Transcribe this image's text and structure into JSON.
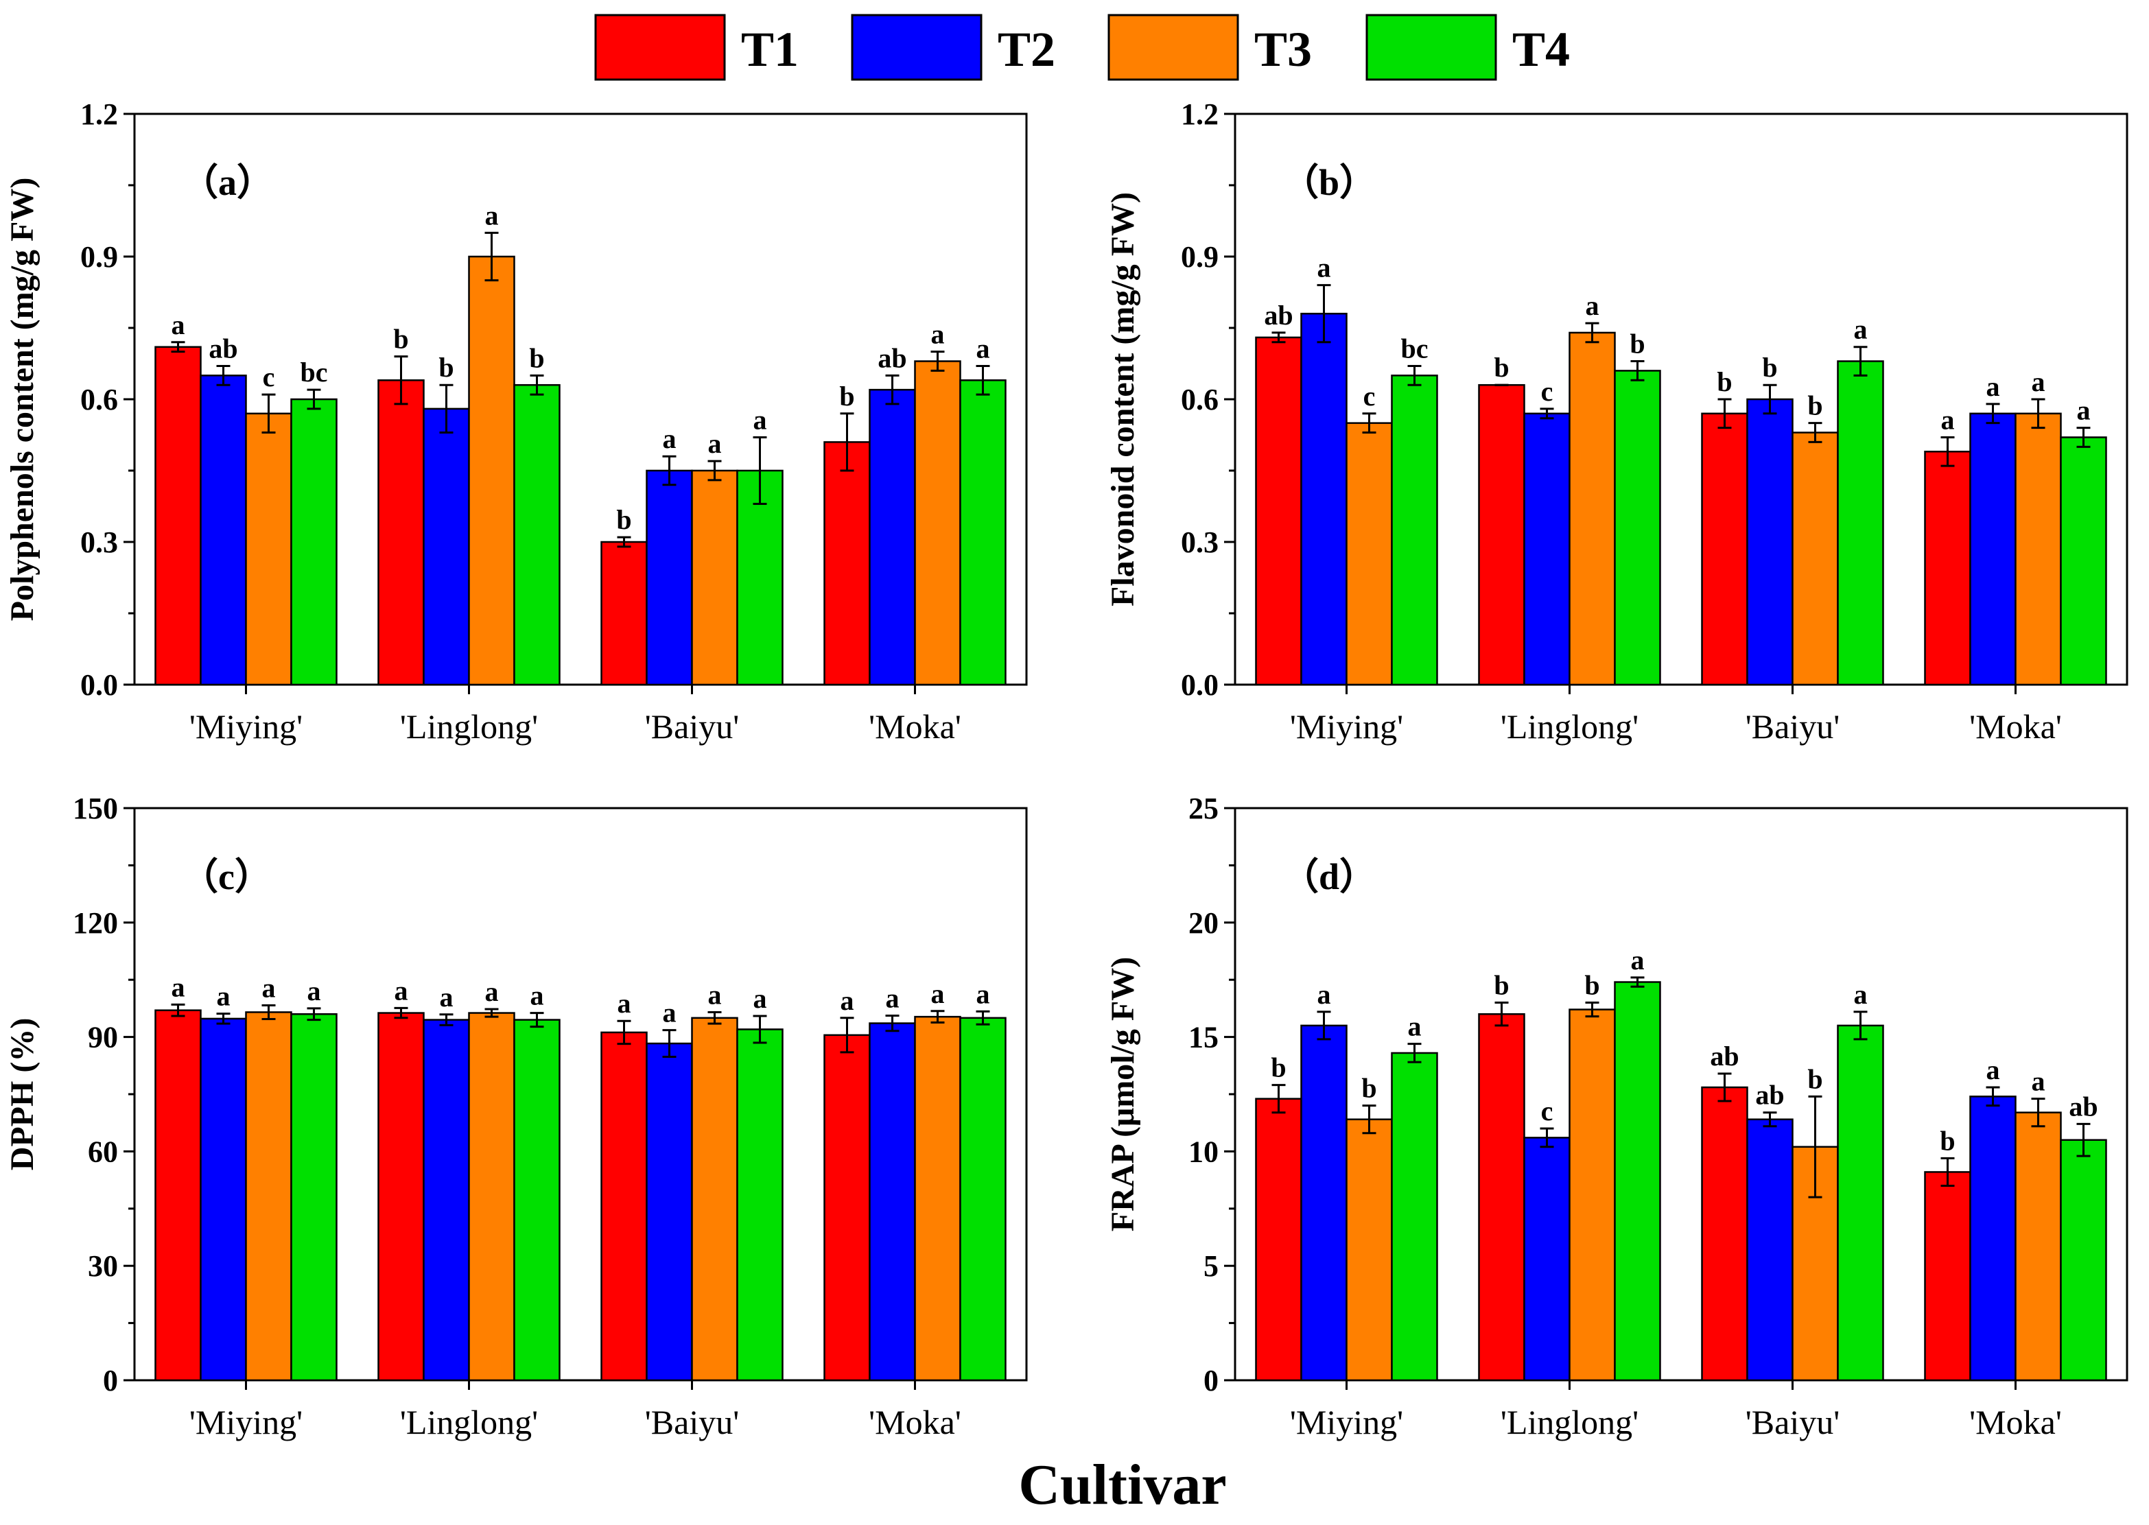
{
  "legend": [
    {
      "name": "T1",
      "color": "#ff0000"
    },
    {
      "name": "T2",
      "color": "#0000ff"
    },
    {
      "name": "T3",
      "color": "#ff8000"
    },
    {
      "name": "T4",
      "color": "#00e000"
    }
  ],
  "x_title": "Cultivar",
  "chart_data": [
    {
      "type": "bar",
      "panel_label": "（a）",
      "ylabel": "Polyphenols content (mg/g FW)",
      "ylim": [
        0,
        1.2
      ],
      "yticks": [
        "0.0",
        "0.3",
        "0.6",
        "0.9",
        "1.2"
      ],
      "categories": [
        "'Miying'",
        "'Linglong'",
        "'Baiyu'",
        "'Moka'"
      ],
      "series": [
        {
          "name": "T1",
          "values": [
            0.71,
            0.64,
            0.3,
            0.51
          ],
          "errors": [
            0.01,
            0.05,
            0.01,
            0.06
          ],
          "letters": [
            "a",
            "b",
            "b",
            "b"
          ]
        },
        {
          "name": "T2",
          "values": [
            0.65,
            0.58,
            0.45,
            0.62
          ],
          "errors": [
            0.02,
            0.05,
            0.03,
            0.03
          ],
          "letters": [
            "ab",
            "b",
            "a",
            "ab"
          ]
        },
        {
          "name": "T3",
          "values": [
            0.57,
            0.9,
            0.45,
            0.68
          ],
          "errors": [
            0.04,
            0.05,
            0.02,
            0.02
          ],
          "letters": [
            "c",
            "a",
            "a",
            "a"
          ]
        },
        {
          "name": "T4",
          "values": [
            0.6,
            0.63,
            0.45,
            0.64
          ],
          "errors": [
            0.02,
            0.02,
            0.07,
            0.03
          ],
          "letters": [
            "bc",
            "b",
            "a",
            "a"
          ]
        }
      ]
    },
    {
      "type": "bar",
      "panel_label": "（b）",
      "ylabel": "Flavonoid content (mg/g FW)",
      "ylim": [
        0,
        1.2
      ],
      "yticks": [
        "0.0",
        "0.3",
        "0.6",
        "0.9",
        "1.2"
      ],
      "categories": [
        "'Miying'",
        "'Linglong'",
        "'Baiyu'",
        "'Moka'"
      ],
      "series": [
        {
          "name": "T1",
          "values": [
            0.73,
            0.63,
            0.57,
            0.49
          ],
          "errors": [
            0.01,
            0.0,
            0.03,
            0.03
          ],
          "letters": [
            "ab",
            "b",
            "b",
            "a"
          ]
        },
        {
          "name": "T2",
          "values": [
            0.78,
            0.57,
            0.6,
            0.57
          ],
          "errors": [
            0.06,
            0.01,
            0.03,
            0.02
          ],
          "letters": [
            "a",
            "c",
            "b",
            "a"
          ]
        },
        {
          "name": "T3",
          "values": [
            0.55,
            0.74,
            0.53,
            0.57
          ],
          "errors": [
            0.02,
            0.02,
            0.02,
            0.03
          ],
          "letters": [
            "c",
            "a",
            "b",
            "a"
          ]
        },
        {
          "name": "T4",
          "values": [
            0.65,
            0.66,
            0.68,
            0.52
          ],
          "errors": [
            0.02,
            0.02,
            0.03,
            0.02
          ],
          "letters": [
            "bc",
            "b",
            "a",
            "a"
          ]
        }
      ]
    },
    {
      "type": "bar",
      "panel_label": "（c）",
      "ylabel": "DPPH (%)",
      "ylim": [
        0,
        150
      ],
      "yticks": [
        "0",
        "30",
        "60",
        "90",
        "120",
        "150"
      ],
      "categories": [
        "'Miying'",
        "'Linglong'",
        "'Baiyu'",
        "'Moka'"
      ],
      "series": [
        {
          "name": "T1",
          "values": [
            97.0,
            96.3,
            91.2,
            90.5
          ],
          "errors": [
            1.5,
            1.3,
            3.0,
            4.5
          ],
          "letters": [
            "a",
            "a",
            "a",
            "a"
          ]
        },
        {
          "name": "T2",
          "values": [
            94.8,
            94.5,
            88.3,
            93.6
          ],
          "errors": [
            1.3,
            1.4,
            3.5,
            2.0
          ],
          "letters": [
            "a",
            "a",
            "a",
            "a"
          ]
        },
        {
          "name": "T3",
          "values": [
            96.5,
            96.3,
            95.0,
            95.3
          ],
          "errors": [
            1.8,
            1.0,
            1.5,
            1.5
          ],
          "letters": [
            "a",
            "a",
            "a",
            "a"
          ]
        },
        {
          "name": "T4",
          "values": [
            96.0,
            94.5,
            92.0,
            95.0
          ],
          "errors": [
            1.5,
            1.8,
            3.5,
            1.7
          ],
          "letters": [
            "a",
            "a",
            "a",
            "a"
          ]
        }
      ]
    },
    {
      "type": "bar",
      "panel_label": "（d）",
      "ylabel": "FRAP (μmol/g FW)",
      "ylim": [
        0,
        25
      ],
      "yticks": [
        "0",
        "5",
        "10",
        "15",
        "20",
        "25"
      ],
      "categories": [
        "'Miying'",
        "'Linglong'",
        "'Baiyu'",
        "'Moka'"
      ],
      "series": [
        {
          "name": "T1",
          "values": [
            12.3,
            16.0,
            12.8,
            9.1
          ],
          "errors": [
            0.6,
            0.5,
            0.6,
            0.6
          ],
          "letters": [
            "b",
            "b",
            "ab",
            "b"
          ]
        },
        {
          "name": "T2",
          "values": [
            15.5,
            10.6,
            11.4,
            12.4
          ],
          "errors": [
            0.6,
            0.4,
            0.3,
            0.4
          ],
          "letters": [
            "a",
            "c",
            "ab",
            "a"
          ]
        },
        {
          "name": "T3",
          "values": [
            11.4,
            16.2,
            10.2,
            11.7
          ],
          "errors": [
            0.6,
            0.3,
            2.2,
            0.6
          ],
          "letters": [
            "b",
            "b",
            "b",
            "a"
          ]
        },
        {
          "name": "T4",
          "values": [
            14.3,
            17.4,
            15.5,
            10.5
          ],
          "errors": [
            0.4,
            0.2,
            0.6,
            0.7
          ],
          "letters": [
            "a",
            "a",
            "a",
            "ab"
          ]
        }
      ]
    }
  ]
}
